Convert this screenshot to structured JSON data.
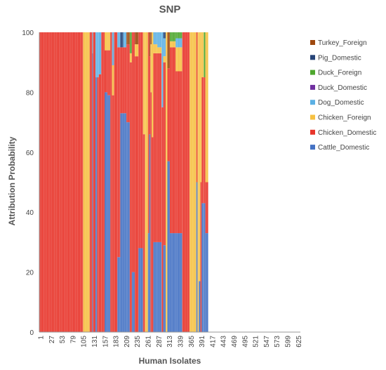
{
  "chart_data": {
    "type": "bar",
    "stacked": true,
    "title": "SNP",
    "xlabel": "Human Isolates",
    "ylabel": "Attribution Probability",
    "ylim": [
      0,
      100
    ],
    "yticks": [
      0,
      20,
      40,
      60,
      80,
      100
    ],
    "xtick_labels": [
      "1",
      "27",
      "53",
      "79",
      "105",
      "131",
      "157",
      "183",
      "209",
      "235",
      "261",
      "287",
      "313",
      "339",
      "365",
      "391",
      "417",
      "443",
      "469",
      "495",
      "521",
      "547",
      "573",
      "599",
      "625"
    ],
    "legend_position": "right",
    "series": [
      {
        "name": "Turkey_Foreign",
        "color": "#9e480e"
      },
      {
        "name": "Pig_Domestic",
        "color": "#264478"
      },
      {
        "name": "Duck_Foreign",
        "color": "#4ea72e"
      },
      {
        "name": "Duck_Domestic",
        "color": "#7030a0"
      },
      {
        "name": "Dog_Domestic",
        "color": "#5bb0e4"
      },
      {
        "name": "Chicken_Foreign",
        "color": "#f6c142"
      },
      {
        "name": "Chicken_Domestic",
        "color": "#e8352b"
      },
      {
        "name": "Cattle_Domestic",
        "color": "#4472c4"
      }
    ],
    "segments": [
      {
        "from": 1,
        "to": 106,
        "values": {
          "Chicken_Domestic": 100
        }
      },
      {
        "from": 107,
        "to": 122,
        "values": {
          "Chicken_Foreign": 100
        }
      },
      {
        "from": 123,
        "to": 128,
        "values": {
          "Chicken_Domestic": 100
        }
      },
      {
        "from": 129,
        "to": 130,
        "values": {
          "Cattle_Domestic": 93,
          "Dog_Domestic": 7
        }
      },
      {
        "from": 131,
        "to": 136,
        "values": {
          "Chicken_Domestic": 100
        }
      },
      {
        "from": 137,
        "to": 140,
        "values": {
          "Cattle_Domestic": 85,
          "Dog_Domestic": 15
        }
      },
      {
        "from": 141,
        "to": 144,
        "values": {
          "Chicken_Domestic": 85,
          "Dog_Domestic": 15
        }
      },
      {
        "from": 145,
        "to": 150,
        "values": {
          "Chicken_Domestic": 86,
          "Dog_Domestic": 14
        }
      },
      {
        "from": 151,
        "to": 158,
        "values": {
          "Chicken_Domestic": 100
        }
      },
      {
        "from": 159,
        "to": 165,
        "values": {
          "Cattle_Domestic": 80,
          "Chicken_Domestic": 14,
          "Chicken_Foreign": 6
        }
      },
      {
        "from": 166,
        "to": 172,
        "values": {
          "Cattle_Domestic": 79,
          "Chicken_Domestic": 15,
          "Chicken_Foreign": 6
        }
      },
      {
        "from": 173,
        "to": 176,
        "values": {
          "Chicken_Domestic": 100
        }
      },
      {
        "from": 177,
        "to": 181,
        "values": {
          "Chicken_Domestic": 79,
          "Chicken_Foreign": 10,
          "Dog_Domestic": 11
        }
      },
      {
        "from": 182,
        "to": 189,
        "values": {
          "Chicken_Domestic": 100
        }
      },
      {
        "from": 190,
        "to": 196,
        "values": {
          "Cattle_Domestic": 25,
          "Chicken_Domestic": 70,
          "Dog_Domestic": 5
        }
      },
      {
        "from": 197,
        "to": 203,
        "values": {
          "Cattle_Domestic": 73,
          "Chicken_Domestic": 22,
          "Pig_Domestic": 5
        }
      },
      {
        "from": 204,
        "to": 211,
        "values": {
          "Cattle_Domestic": 73,
          "Chicken_Domestic": 22,
          "Dog_Domestic": 5
        }
      },
      {
        "from": 212,
        "to": 219,
        "values": {
          "Cattle_Domestic": 70,
          "Chicken_Domestic": 26,
          "Turkey_Foreign": 4
        }
      },
      {
        "from": 220,
        "to": 224,
        "values": {
          "Chicken_Domestic": 90,
          "Chicken_Foreign": 3,
          "Duck_Foreign": 7
        }
      },
      {
        "from": 225,
        "to": 231,
        "values": {
          "Cattle_Domestic": 20,
          "Chicken_Domestic": 80
        }
      },
      {
        "from": 232,
        "to": 240,
        "values": {
          "Chicken_Domestic": 92,
          "Chicken_Foreign": 4,
          "Turkey_Foreign": 4
        }
      },
      {
        "from": 241,
        "to": 251,
        "values": {
          "Cattle_Domestic": 28,
          "Chicken_Domestic": 72
        }
      },
      {
        "from": 252,
        "to": 256,
        "values": {
          "Chicken_Domestic": 66,
          "Chicken_Foreign": 34
        }
      },
      {
        "from": 257,
        "to": 263,
        "values": {
          "Chicken_Foreign": 100
        }
      },
      {
        "from": 264,
        "to": 266,
        "values": {
          "Cattle_Domestic": 33,
          "Chicken_Domestic": 67
        }
      },
      {
        "from": 267,
        "to": 269,
        "values": {
          "Cattle_Domestic": 66,
          "Chicken_Domestic": 26,
          "Turkey_Foreign": 8
        }
      },
      {
        "from": 270,
        "to": 272,
        "values": {
          "Chicken_Foreign": 16,
          "Chicken_Domestic": 80,
          "Turkey_Foreign": 4
        }
      },
      {
        "from": 273,
        "to": 276,
        "values": {
          "Chicken_Foreign": 35,
          "Chicken_Domestic": 65
        }
      },
      {
        "from": 277,
        "to": 286,
        "values": {
          "Cattle_Domestic": 30,
          "Chicken_Domestic": 63,
          "Chicken_Foreign": 3,
          "Dog_Domestic": 4
        }
      },
      {
        "from": 287,
        "to": 296,
        "values": {
          "Cattle_Domestic": 30,
          "Chicken_Domestic": 63,
          "Chicken_Foreign": 2,
          "Dog_Domestic": 5
        }
      },
      {
        "from": 297,
        "to": 300,
        "values": {
          "Chicken_Domestic": 75,
          "Dog_Domestic": 25
        }
      },
      {
        "from": 301,
        "to": 306,
        "values": {
          "Cattle_Domestic": 29,
          "Chicken_Domestic": 61,
          "Chicken_Foreign": 2,
          "Dog_Domestic": 6,
          "Pig_Domestic": 2
        }
      },
      {
        "from": 307,
        "to": 310,
        "values": {
          "Chicken_Foreign": 100
        }
      },
      {
        "from": 311,
        "to": 316,
        "values": {
          "Cattle_Domestic": 57,
          "Chicken_Domestic": 31,
          "Turkey_Foreign": 12
        }
      },
      {
        "from": 317,
        "to": 330,
        "values": {
          "Cattle_Domestic": 33,
          "Chicken_Domestic": 62,
          "Chicken_Foreign": 2,
          "Duck_Foreign": 3
        }
      },
      {
        "from": 331,
        "to": 346,
        "values": {
          "Cattle_Domestic": 33,
          "Chicken_Domestic": 54,
          "Chicken_Foreign": 8,
          "Dog_Domestic": 3,
          "Duck_Foreign": 2
        }
      },
      {
        "from": 347,
        "to": 364,
        "values": {
          "Chicken_Domestic": 100
        }
      },
      {
        "from": 365,
        "to": 380,
        "values": {
          "Chicken_Foreign": 100
        }
      },
      {
        "from": 381,
        "to": 383,
        "values": {
          "Cattle_Domestic": 50,
          "Chicken_Domestic": 50
        }
      },
      {
        "from": 384,
        "to": 386,
        "values": {
          "Chicken_Foreign": 100
        }
      },
      {
        "from": 387,
        "to": 390,
        "values": {
          "Cattle_Domestic": 17,
          "Chicken_Foreign": 83
        }
      },
      {
        "from": 391,
        "to": 393,
        "values": {
          "Chicken_Foreign": 50,
          "Chicken_Domestic": 50
        }
      },
      {
        "from": 394,
        "to": 398,
        "values": {
          "Cattle_Domestic": 43,
          "Chicken_Domestic": 42,
          "Chicken_Foreign": 15
        }
      },
      {
        "from": 399,
        "to": 402,
        "values": {
          "Cattle_Domestic": 43,
          "Chicken_Domestic": 42,
          "Duck_Foreign": 15
        }
      },
      {
        "from": 403,
        "to": 409,
        "values": {
          "Cattle_Domestic": 33,
          "Chicken_Domestic": 17,
          "Chicken_Foreign": 50
        }
      }
    ]
  }
}
